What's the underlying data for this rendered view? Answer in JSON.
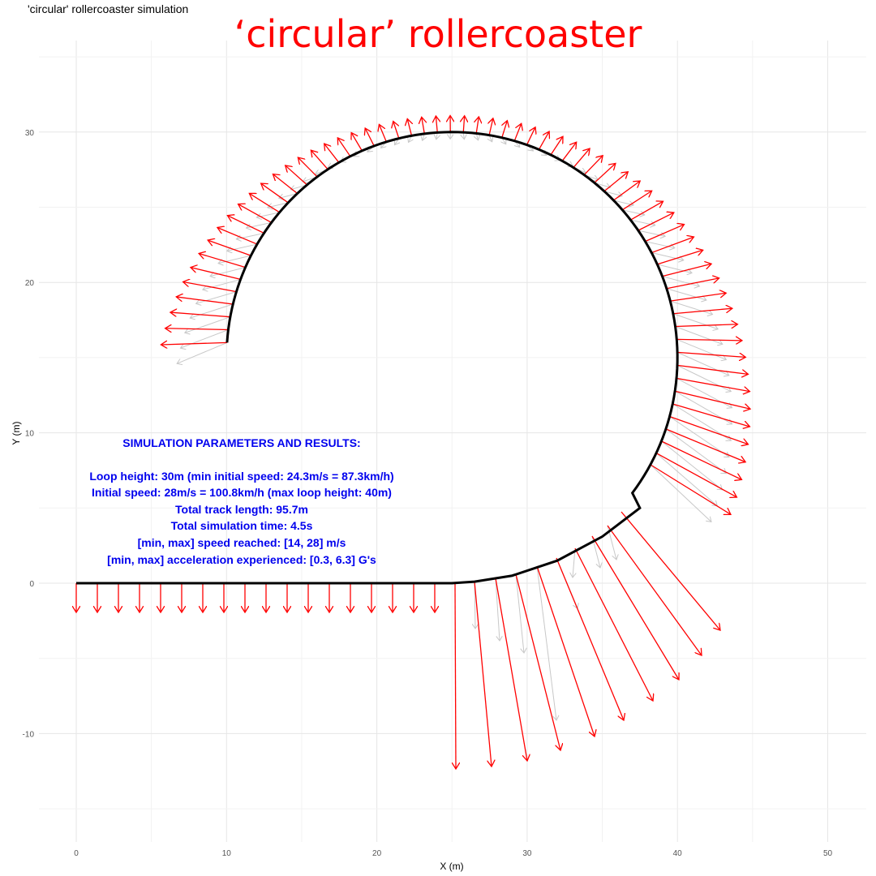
{
  "window": {
    "title": "'circular' rollercoaster simulation"
  },
  "chart_data": {
    "type": "line",
    "title": "‘circular’ rollercoaster",
    "xlabel": "X (m)",
    "ylabel": "Y (m)",
    "xlim": [
      -2.5,
      52.5
    ],
    "ylim": [
      -16,
      35
    ],
    "x_ticks": [
      "0",
      "10",
      "20",
      "30",
      "40",
      "50"
    ],
    "y_ticks": [
      "-10",
      "0",
      "10",
      "20",
      "30"
    ],
    "grid": true,
    "track": {
      "straight": {
        "x": [
          0,
          25
        ],
        "y": 0
      },
      "entry_curve": {
        "x": [
          25,
          26.5,
          29,
          32,
          35,
          37.5
        ],
        "y": [
          0,
          0.1,
          0.5,
          1.5,
          3.1,
          5
        ]
      },
      "loop": {
        "center": [
          25,
          15
        ],
        "radius": 15,
        "end": [
          10,
          16
        ]
      }
    },
    "acceleration_arrows_color": "#ff0000",
    "velocity_arrows_color": "#c8c8c8",
    "annotation_lines": [
      "SIMULATION PARAMETERS AND RESULTS:",
      "",
      "Loop height: 30m (min initial speed: 24.3m/s = 87.3km/h)",
      "Initial speed: 28m/s = 100.8km/h (max loop height: 40m)",
      "Total track length: 95.7m",
      "Total simulation time: 4.5s",
      "[min, max] speed reached: [14, 28] m/s",
      "[min, max] acceleration experienced: [0.3, 6.3] G's"
    ],
    "simulation": {
      "loop_height_m": 30,
      "min_initial_speed_ms": 24.3,
      "min_initial_speed_kmh": 87.3,
      "initial_speed_ms": 28,
      "initial_speed_kmh": 100.8,
      "max_loop_height_m": 40,
      "track_length_m": 95.7,
      "simulation_time_s": 4.5,
      "speed_range_ms": [
        14,
        28
      ],
      "acceleration_range_g": [
        0.3,
        6.3
      ]
    }
  }
}
